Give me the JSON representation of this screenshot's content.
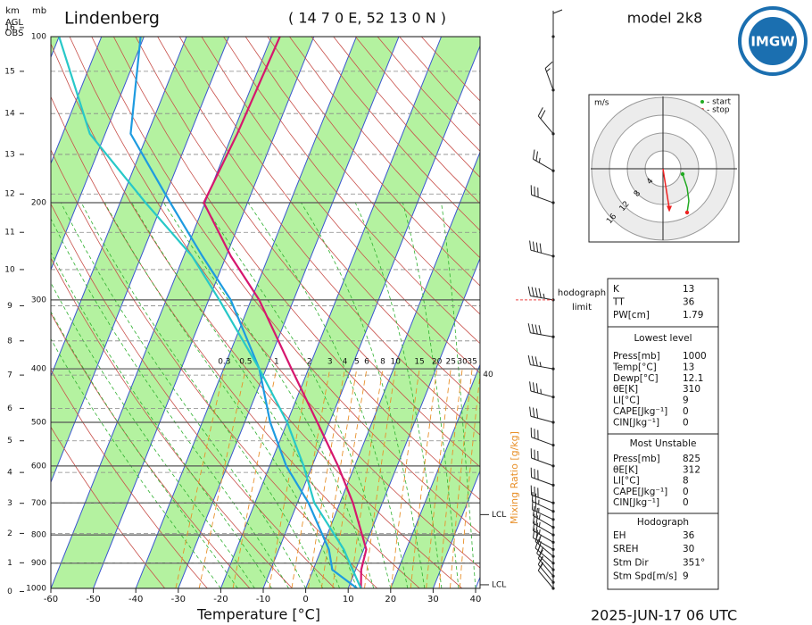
{
  "header": {
    "station": "Lindenberg",
    "coords": "( 14 7 0 E, 52 13 0 N )",
    "model": "model 2k8",
    "logo": "IMGW",
    "date": "2025-JUN-17   06 UTC"
  },
  "chart_data": {
    "type": "skewt",
    "xlabel": "Temperature [°C]",
    "xlim": [
      -60,
      40
    ],
    "xticks": [
      -60,
      -50,
      -40,
      -30,
      -20,
      -10,
      0,
      10,
      20,
      30,
      40
    ],
    "ylabel": "mb",
    "ylim": [
      1000,
      100
    ],
    "yticks": [
      100,
      200,
      300,
      400,
      500,
      600,
      700,
      800,
      900,
      1000
    ],
    "log_y": true,
    "y2label": [
      "km",
      "AGL",
      "OBS"
    ],
    "y2lim": [
      0,
      16
    ],
    "y2ticks": [
      0,
      1,
      2,
      3,
      4,
      5,
      6,
      7,
      8,
      9,
      10,
      11,
      12,
      13,
      14,
      15,
      16
    ],
    "pressure": [
      1000,
      925,
      850,
      700,
      600,
      500,
      400,
      300,
      250,
      200,
      150,
      100
    ],
    "series": [
      {
        "color": "#d6176e",
        "values": [
          13,
          11.3,
          10.6,
          3.1,
          -3.9,
          -12.9,
          -24,
          -38.1,
          -48.9,
          -60.3,
          -58.9,
          -58
        ]
      },
      {
        "color": "#1e9be0",
        "values": [
          12.1,
          4.5,
          1.8,
          -7.4,
          -16.1,
          -24,
          -31.6,
          -44.8,
          -55.6,
          -68.2,
          -84,
          -90.8
        ]
      },
      {
        "color": "#28c8c8",
        "values": [
          13,
          9.3,
          5.3,
          -6,
          -12,
          -20,
          -31.6,
          -47.5,
          -58,
          -74,
          -93.6,
          -110
        ]
      }
    ],
    "mixing_ratio": {
      "label": "Mixing Ratio [g/kg]",
      "color": "#e8902a",
      "ticks": [
        0.3,
        0.5,
        1,
        2,
        3,
        4,
        5,
        6,
        8,
        10,
        15,
        20,
        25,
        30,
        35,
        40
      ]
    },
    "lcl": [
      {
        "label": "LCL",
        "pressure": 985
      },
      {
        "label": "LCL",
        "pressure": 735
      }
    ],
    "winds": {
      "pressure": [
        1000,
        975,
        950,
        925,
        900,
        875,
        850,
        825,
        800,
        775,
        750,
        725,
        700,
        650,
        600,
        550,
        500,
        450,
        400,
        350,
        300,
        250,
        200,
        175,
        150,
        125,
        100
      ],
      "direction": [
        320,
        320,
        320,
        315,
        310,
        310,
        300,
        300,
        300,
        300,
        295,
        295,
        290,
        290,
        290,
        290,
        285,
        285,
        280,
        280,
        280,
        285,
        290,
        300,
        320,
        340,
        360
      ],
      "speed": [
        10,
        15,
        15,
        20,
        20,
        20,
        25,
        25,
        25,
        25,
        25,
        25,
        30,
        30,
        30,
        30,
        30,
        35,
        35,
        40,
        45,
        40,
        30,
        25,
        20,
        15,
        10
      ]
    },
    "hodograph_limit": {
      "lines": [
        "hodograph",
        "limit"
      ],
      "pressure": 300
    }
  },
  "hodograph": {
    "unit": "m/s",
    "rings": [
      4,
      8,
      12,
      16
    ],
    "legend": [
      "- start",
      "- stop"
    ],
    "u": [
      4.4,
      5.4,
      5.8,
      5.4
    ],
    "v": [
      -1.2,
      -4.2,
      -7.2,
      -9.8
    ]
  },
  "indices": {
    "summary": [
      [
        "K",
        13
      ],
      [
        "TT",
        36
      ],
      [
        "PW[cm]",
        1.79
      ]
    ],
    "lowest_level": {
      "title": "Lowest level",
      "rows": [
        [
          "Press[mb]",
          1000
        ],
        [
          "Temp[°C]",
          13
        ],
        [
          "Dewp[°C]",
          12.1
        ],
        [
          "θE[K]",
          310
        ],
        [
          "LI[°C]",
          9
        ],
        [
          "CAPE[Jkg⁻¹]",
          0
        ],
        [
          "CIN[Jkg⁻¹]",
          0
        ]
      ]
    },
    "most_unstable": {
      "title": "Most Unstable",
      "rows": [
        [
          "Press[mb]",
          825
        ],
        [
          "θE[K]",
          312
        ],
        [
          "LI[°C]",
          8
        ],
        [
          "CAPE[Jkg⁻¹]",
          0
        ],
        [
          "CIN[Jkg⁻¹]",
          0
        ]
      ]
    },
    "hodograph": {
      "title": "Hodograph",
      "rows": [
        [
          "EH",
          36
        ],
        [
          "SREH",
          30
        ],
        [
          "Stm Dir",
          {
            "value": 351,
            "label": "351°"
          }
        ],
        [
          "Stm Spd[m/s]",
          9
        ]
      ]
    }
  }
}
